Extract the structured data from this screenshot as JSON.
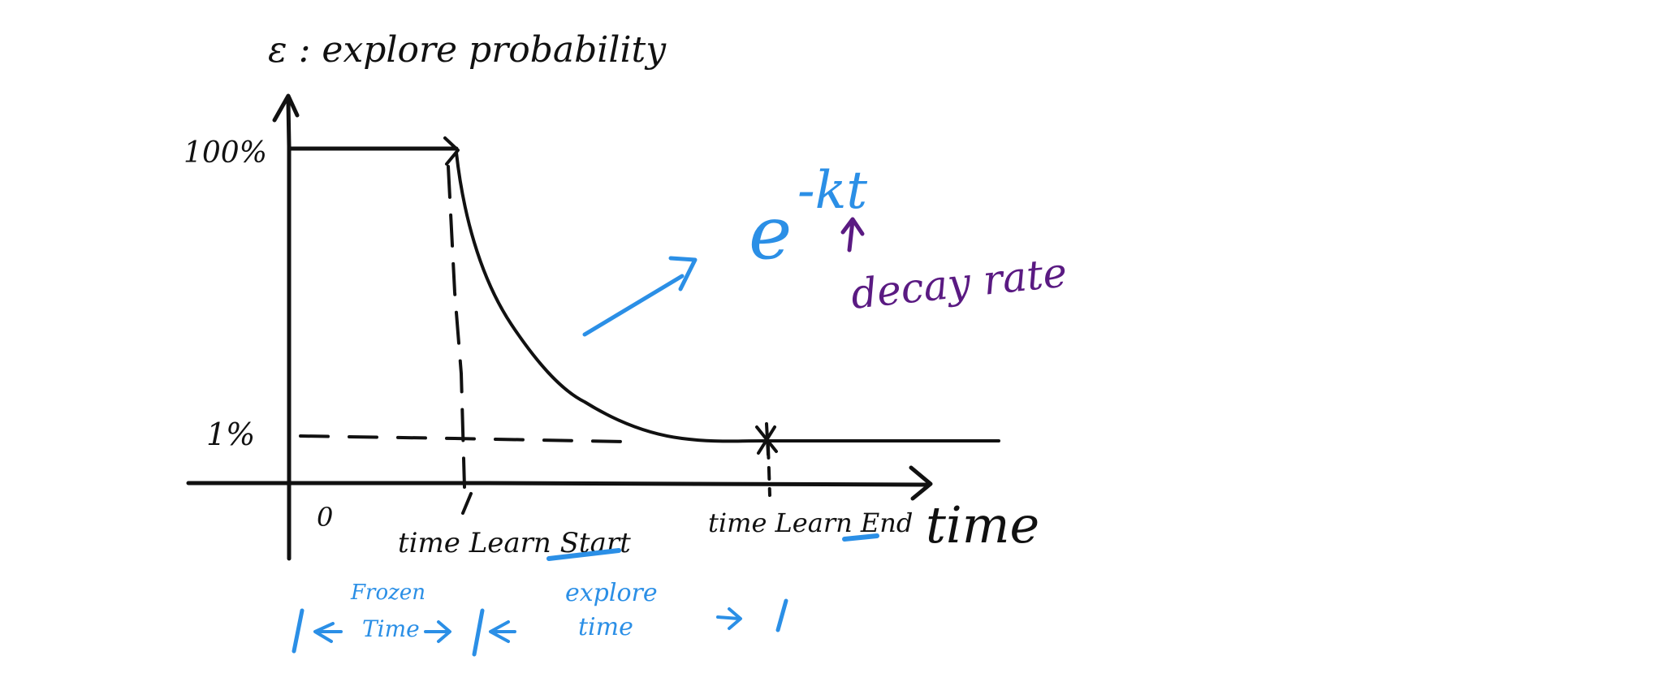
{
  "y_axis_label": "ε : explore probability",
  "x_axis_label": "time",
  "y_tick_top": "100%",
  "y_tick_low": "1%",
  "x_origin": "0",
  "learn_start_label": "time Learn Start",
  "learn_end_label": "time Learn End",
  "formula": {
    "base": "e",
    "exponent": "-kt"
  },
  "decay_rate_label": "decay rate",
  "frozen_time_line1": "Frozen",
  "frozen_time_line2": "Time",
  "explore_time_line1": "explore",
  "explore_time_line2": "time",
  "colors": {
    "ink": "#111111",
    "blue": "#2b8fe6",
    "purple": "#5a1a82",
    "background": "#ffffff"
  }
}
